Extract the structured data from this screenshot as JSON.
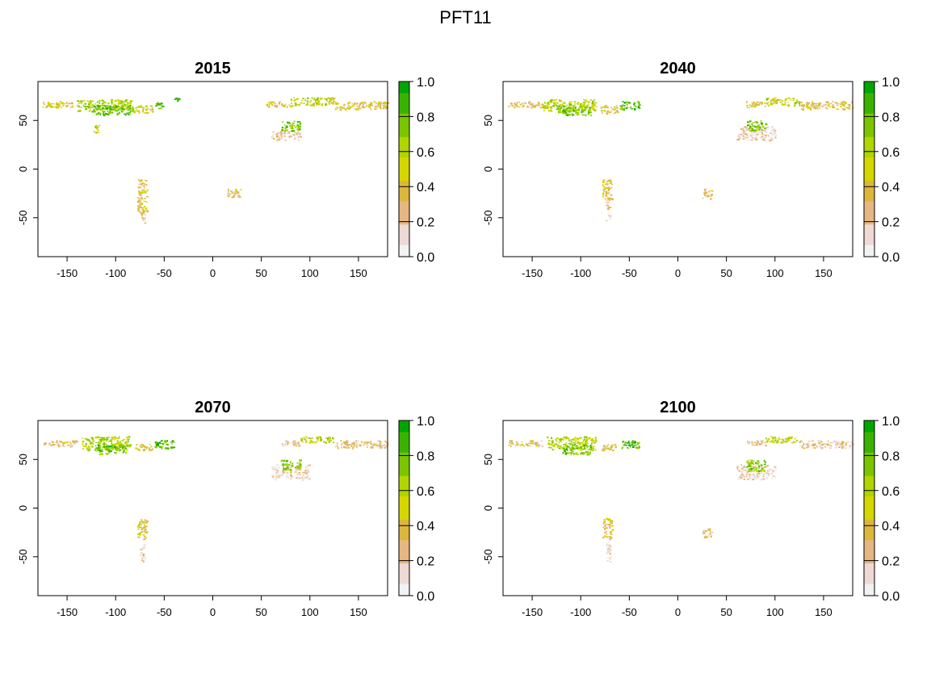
{
  "figure": {
    "title": "PFT11"
  },
  "colors": {
    "scale": [
      "#F2F2F2",
      "#EED9D5",
      "#E6B783",
      "#DDB63C",
      "#D6D600",
      "#B0D500",
      "#7AC500",
      "#3AB300",
      "#00A600"
    ]
  },
  "chart_data": [
    {
      "type": "heatmap",
      "title": "2015",
      "xlim": [
        -180,
        180
      ],
      "ylim": [
        -90,
        90
      ],
      "x_ticks": [
        -150,
        -100,
        -50,
        0,
        50,
        100,
        150
      ],
      "y_ticks": [
        50,
        0,
        -50
      ],
      "legend_ticks": [
        "1.0",
        "0.8",
        "0.6",
        "0.4",
        "0.2",
        "0.0"
      ],
      "zlim": [
        0,
        1
      ],
      "regions": [
        {
          "lon": [
            -178,
            -145
          ],
          "lat": [
            64,
            70
          ],
          "value": 0.45
        },
        {
          "lon": [
            -140,
            -82
          ],
          "lat": [
            60,
            72
          ],
          "value": 0.62
        },
        {
          "lon": [
            -125,
            -85
          ],
          "lat": [
            56,
            66
          ],
          "value": 0.78
        },
        {
          "lon": [
            -82,
            -62
          ],
          "lat": [
            58,
            66
          ],
          "value": 0.5
        },
        {
          "lon": [
            -60,
            -52
          ],
          "lat": [
            62,
            70
          ],
          "value": 0.8
        },
        {
          "lon": [
            -40,
            -35
          ],
          "lat": [
            70,
            74
          ],
          "value": 0.9
        },
        {
          "lon": [
            -125,
            -118
          ],
          "lat": [
            38,
            46
          ],
          "value": 0.6
        },
        {
          "lon": [
            55,
            80
          ],
          "lat": [
            64,
            70
          ],
          "value": 0.4
        },
        {
          "lon": [
            80,
            125
          ],
          "lat": [
            66,
            74
          ],
          "value": 0.55
        },
        {
          "lon": [
            125,
            180
          ],
          "lat": [
            62,
            70
          ],
          "value": 0.42
        },
        {
          "lon": [
            60,
            90
          ],
          "lat": [
            30,
            40
          ],
          "value": 0.15
        },
        {
          "lon": [
            70,
            90
          ],
          "lat": [
            40,
            50
          ],
          "value": 0.75
        },
        {
          "lon": [
            -78,
            -68
          ],
          "lat": [
            -45,
            -10
          ],
          "value": 0.4
        },
        {
          "lon": [
            -75,
            -70
          ],
          "lat": [
            -55,
            -45
          ],
          "value": 0.2
        },
        {
          "lon": [
            15,
            30
          ],
          "lat": [
            -30,
            -20
          ],
          "value": 0.3
        }
      ]
    },
    {
      "type": "heatmap",
      "title": "2040",
      "xlim": [
        -180,
        180
      ],
      "ylim": [
        -90,
        90
      ],
      "x_ticks": [
        -150,
        -100,
        -50,
        0,
        50,
        100,
        150
      ],
      "y_ticks": [
        50,
        0,
        -50
      ],
      "legend_ticks": [
        "1.0",
        "0.8",
        "0.6",
        "0.4",
        "0.2",
        "0.0"
      ],
      "zlim": [
        0,
        1
      ],
      "regions": [
        {
          "lon": [
            -175,
            -140
          ],
          "lat": [
            64,
            70
          ],
          "value": 0.35
        },
        {
          "lon": [
            -140,
            -85
          ],
          "lat": [
            60,
            72
          ],
          "value": 0.6
        },
        {
          "lon": [
            -125,
            -90
          ],
          "lat": [
            56,
            66
          ],
          "value": 0.75
        },
        {
          "lon": [
            -80,
            -62
          ],
          "lat": [
            58,
            66
          ],
          "value": 0.45
        },
        {
          "lon": [
            -60,
            -40
          ],
          "lat": [
            62,
            70
          ],
          "value": 0.8
        },
        {
          "lon": [
            70,
            90
          ],
          "lat": [
            64,
            70
          ],
          "value": 0.4
        },
        {
          "lon": [
            90,
            125
          ],
          "lat": [
            66,
            74
          ],
          "value": 0.55
        },
        {
          "lon": [
            125,
            180
          ],
          "lat": [
            62,
            70
          ],
          "value": 0.38
        },
        {
          "lon": [
            60,
            100
          ],
          "lat": [
            30,
            45
          ],
          "value": 0.15
        },
        {
          "lon": [
            70,
            90
          ],
          "lat": [
            40,
            50
          ],
          "value": 0.7
        },
        {
          "lon": [
            -78,
            -68
          ],
          "lat": [
            -30,
            -10
          ],
          "value": 0.4
        },
        {
          "lon": [
            -75,
            -70
          ],
          "lat": [
            -55,
            -30
          ],
          "value": 0.15
        },
        {
          "lon": [
            25,
            35
          ],
          "lat": [
            -30,
            -20
          ],
          "value": 0.3
        }
      ]
    },
    {
      "type": "heatmap",
      "title": "2070",
      "xlim": [
        -180,
        180
      ],
      "ylim": [
        -90,
        90
      ],
      "x_ticks": [
        -150,
        -100,
        -50,
        0,
        50,
        100,
        150
      ],
      "y_ticks": [
        50,
        0,
        -50
      ],
      "legend_ticks": [
        "1.0",
        "0.8",
        "0.6",
        "0.4",
        "0.2",
        "0.0"
      ],
      "zlim": [
        0,
        1
      ],
      "regions": [
        {
          "lon": [
            -175,
            -140
          ],
          "lat": [
            64,
            70
          ],
          "value": 0.3
        },
        {
          "lon": [
            -135,
            -85
          ],
          "lat": [
            60,
            74
          ],
          "value": 0.62
        },
        {
          "lon": [
            -120,
            -90
          ],
          "lat": [
            56,
            66
          ],
          "value": 0.78
        },
        {
          "lon": [
            -80,
            -62
          ],
          "lat": [
            60,
            66
          ],
          "value": 0.48
        },
        {
          "lon": [
            -60,
            -40
          ],
          "lat": [
            62,
            70
          ],
          "value": 0.82
        },
        {
          "lon": [
            70,
            90
          ],
          "lat": [
            64,
            70
          ],
          "value": 0.25
        },
        {
          "lon": [
            90,
            125
          ],
          "lat": [
            68,
            74
          ],
          "value": 0.55
        },
        {
          "lon": [
            125,
            180
          ],
          "lat": [
            62,
            70
          ],
          "value": 0.3
        },
        {
          "lon": [
            60,
            100
          ],
          "lat": [
            30,
            45
          ],
          "value": 0.15
        },
        {
          "lon": [
            70,
            90
          ],
          "lat": [
            40,
            50
          ],
          "value": 0.7
        },
        {
          "lon": [
            -78,
            -68
          ],
          "lat": [
            -30,
            -10
          ],
          "value": 0.45
        },
        {
          "lon": [
            -75,
            -70
          ],
          "lat": [
            -55,
            -30
          ],
          "value": 0.15
        }
      ]
    },
    {
      "type": "heatmap",
      "title": "2100",
      "xlim": [
        -180,
        180
      ],
      "ylim": [
        -90,
        90
      ],
      "x_ticks": [
        -150,
        -100,
        -50,
        0,
        50,
        100,
        150
      ],
      "y_ticks": [
        50,
        0,
        -50
      ],
      "legend_ticks": [
        "1.0",
        "0.8",
        "0.6",
        "0.4",
        "0.2",
        "0.0"
      ],
      "zlim": [
        0,
        1
      ],
      "regions": [
        {
          "lon": [
            -175,
            -140
          ],
          "lat": [
            64,
            70
          ],
          "value": 0.3
        },
        {
          "lon": [
            -135,
            -85
          ],
          "lat": [
            60,
            74
          ],
          "value": 0.62
        },
        {
          "lon": [
            -120,
            -90
          ],
          "lat": [
            56,
            66
          ],
          "value": 0.78
        },
        {
          "lon": [
            -80,
            -62
          ],
          "lat": [
            60,
            66
          ],
          "value": 0.45
        },
        {
          "lon": [
            -60,
            -40
          ],
          "lat": [
            62,
            70
          ],
          "value": 0.82
        },
        {
          "lon": [
            70,
            90
          ],
          "lat": [
            64,
            70
          ],
          "value": 0.25
        },
        {
          "lon": [
            90,
            125
          ],
          "lat": [
            68,
            74
          ],
          "value": 0.55
        },
        {
          "lon": [
            125,
            180
          ],
          "lat": [
            62,
            70
          ],
          "value": 0.2
        },
        {
          "lon": [
            60,
            100
          ],
          "lat": [
            30,
            45
          ],
          "value": 0.15
        },
        {
          "lon": [
            70,
            90
          ],
          "lat": [
            38,
            50
          ],
          "value": 0.72
        },
        {
          "lon": [
            -78,
            -68
          ],
          "lat": [
            -30,
            -10
          ],
          "value": 0.4
        },
        {
          "lon": [
            -75,
            -70
          ],
          "lat": [
            -55,
            -30
          ],
          "value": 0.15
        },
        {
          "lon": [
            25,
            35
          ],
          "lat": [
            -30,
            -20
          ],
          "value": 0.3
        }
      ]
    }
  ]
}
